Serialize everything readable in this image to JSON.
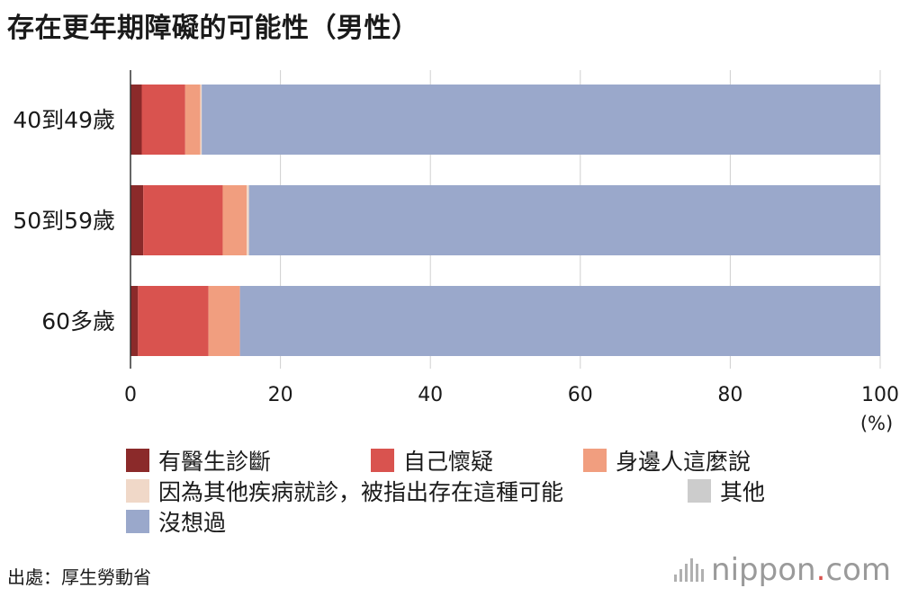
{
  "title": "存在更年期障礙的可能性（男性）",
  "source": "出處：厚生勞動省",
  "brand": {
    "name": "nippon",
    "dot": ".",
    "suffix": "com"
  },
  "chart_data": {
    "type": "bar",
    "orientation": "horizontal",
    "stacked": true,
    "categories": [
      "40到49歲",
      "50到59歲",
      "60多歲"
    ],
    "series": [
      {
        "name": "有醫生診斷",
        "color": "#8b2a2a",
        "values": [
          1.5,
          1.7,
          1.0
        ]
      },
      {
        "name": "自己懷疑",
        "color": "#d9534f",
        "values": [
          5.8,
          10.6,
          9.4
        ]
      },
      {
        "name": "身邊人這麼說",
        "color": "#f19e7f",
        "values": [
          2.0,
          3.2,
          4.2
        ]
      },
      {
        "name": "因為其他疾病就診，被指出存在這種可能",
        "color": "#f0d8c8",
        "values": [
          0.2,
          0.3,
          0.0
        ]
      },
      {
        "name": "其他",
        "color": "#cccccc",
        "values": [
          0.0,
          0.0,
          0.0
        ]
      },
      {
        "name": "沒想過",
        "color": "#9aa8cb",
        "values": [
          90.5,
          84.2,
          85.4
        ]
      }
    ],
    "xlim": [
      0,
      100
    ],
    "xticks": [
      "0",
      "20",
      "40",
      "60",
      "80",
      "100"
    ],
    "xunit": "(%)",
    "grid": true,
    "legend_position": "bottom"
  }
}
